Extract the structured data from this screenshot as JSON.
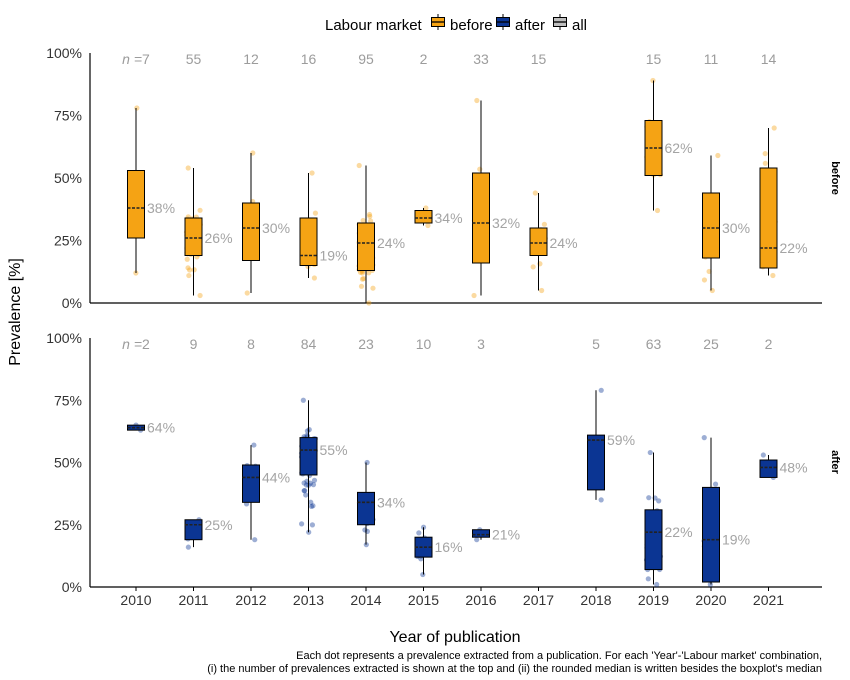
{
  "chart_data": {
    "type": "boxplot",
    "legend": {
      "title": "Labour market",
      "position": "top",
      "entries": [
        {
          "label": "before",
          "color": "#F5A314"
        },
        {
          "label": "after",
          "color": "#0B3593"
        },
        {
          "label": "all",
          "color": "#BEBEBE"
        }
      ]
    },
    "xlabel": "Year of publication",
    "ylabel": "Prevalence [%]",
    "years": [
      "2010",
      "2011",
      "2012",
      "2013",
      "2014",
      "2015",
      "2016",
      "2017",
      "2018",
      "2019",
      "2020",
      "2021"
    ],
    "y_ticks": [
      "0%",
      "25%",
      "50%",
      "75%",
      "100%"
    ],
    "ylim": [
      0,
      100
    ],
    "n_prefix": "n =",
    "caption": [
      "Each dot represents a prevalence extracted from a publication. For each 'Year'-'Labour market' combination,",
      "(i) the number of prevalences extracted is shown at the top and (ii) the rounded median is written besides the boxplot's median"
    ],
    "panels": [
      {
        "strip": "before",
        "color": "#F5A314",
        "boxes": [
          {
            "year": "2010",
            "n": "7",
            "min": 12,
            "q1": 26,
            "median": 38,
            "q3": 53,
            "max": 78,
            "label": "38%"
          },
          {
            "year": "2011",
            "n": "55",
            "min": 3,
            "q1": 19,
            "median": 26,
            "q3": 34,
            "max": 54,
            "label": "26%"
          },
          {
            "year": "2012",
            "n": "12",
            "min": 4,
            "q1": 17,
            "median": 30,
            "q3": 40,
            "max": 60,
            "label": "30%"
          },
          {
            "year": "2013",
            "n": "16",
            "min": 10,
            "q1": 15,
            "median": 19,
            "q3": 34,
            "max": 52,
            "label": "19%"
          },
          {
            "year": "2014",
            "n": "95",
            "min": 0,
            "q1": 13,
            "median": 24,
            "q3": 32,
            "max": 55,
            "label": "24%"
          },
          {
            "year": "2015",
            "n": "2",
            "min": 31,
            "q1": 32,
            "median": 34,
            "q3": 37,
            "max": 38,
            "label": "34%"
          },
          {
            "year": "2016",
            "n": "33",
            "min": 3,
            "q1": 16,
            "median": 32,
            "q3": 52,
            "max": 81,
            "label": "32%"
          },
          {
            "year": "2017",
            "n": "15",
            "min": 5,
            "q1": 19,
            "median": 24,
            "q3": 30,
            "max": 44,
            "label": "24%"
          },
          {
            "year": "2018",
            "n": "",
            "min": null,
            "q1": null,
            "median": null,
            "q3": null,
            "max": null,
            "label": ""
          },
          {
            "year": "2019",
            "n": "15",
            "min": 37,
            "q1": 51,
            "median": 62,
            "q3": 73,
            "max": 89,
            "label": "62%"
          },
          {
            "year": "2020",
            "n": "11",
            "min": 5,
            "q1": 18,
            "median": 30,
            "q3": 44,
            "max": 59,
            "label": "30%"
          },
          {
            "year": "2021",
            "n": "14",
            "min": 11,
            "q1": 14,
            "median": 22,
            "q3": 54,
            "max": 70,
            "label": "22%"
          }
        ]
      },
      {
        "strip": "after",
        "color": "#0B3593",
        "boxes": [
          {
            "year": "2010",
            "n": "2",
            "min": 63,
            "q1": 63,
            "median": 64,
            "q3": 65,
            "max": 65,
            "label": "64%"
          },
          {
            "year": "2011",
            "n": "9",
            "min": 16,
            "q1": 19,
            "median": 25,
            "q3": 27,
            "max": 27,
            "label": "25%"
          },
          {
            "year": "2012",
            "n": "8",
            "min": 19,
            "q1": 34,
            "median": 44,
            "q3": 49,
            "max": 57,
            "label": "44%"
          },
          {
            "year": "2013",
            "n": "84",
            "min": 22,
            "q1": 45,
            "median": 55,
            "q3": 60,
            "max": 75,
            "label": "55%"
          },
          {
            "year": "2014",
            "n": "23",
            "min": 17,
            "q1": 25,
            "median": 34,
            "q3": 38,
            "max": 50,
            "label": "34%"
          },
          {
            "year": "2015",
            "n": "10",
            "min": 5,
            "q1": 12,
            "median": 16,
            "q3": 20,
            "max": 24,
            "label": "16%"
          },
          {
            "year": "2016",
            "n": "3",
            "min": 19,
            "q1": 20,
            "median": 21,
            "q3": 23,
            "max": 23,
            "label": "21%"
          },
          {
            "year": "2017",
            "n": "",
            "min": null,
            "q1": null,
            "median": null,
            "q3": null,
            "max": null,
            "label": ""
          },
          {
            "year": "2018",
            "n": "5",
            "min": 35,
            "q1": 39,
            "median": 59,
            "q3": 61,
            "max": 79,
            "label": "59%"
          },
          {
            "year": "2019",
            "n": "63",
            "min": 1,
            "q1": 7,
            "median": 22,
            "q3": 31,
            "max": 54,
            "label": "22%"
          },
          {
            "year": "2020",
            "n": "25",
            "min": 1,
            "q1": 2,
            "median": 19,
            "q3": 40,
            "max": 60,
            "label": "19%"
          },
          {
            "year": "2021",
            "n": "2",
            "min": 44,
            "q1": 44,
            "median": 48,
            "q3": 51,
            "max": 53,
            "label": "48%"
          }
        ]
      }
    ]
  }
}
